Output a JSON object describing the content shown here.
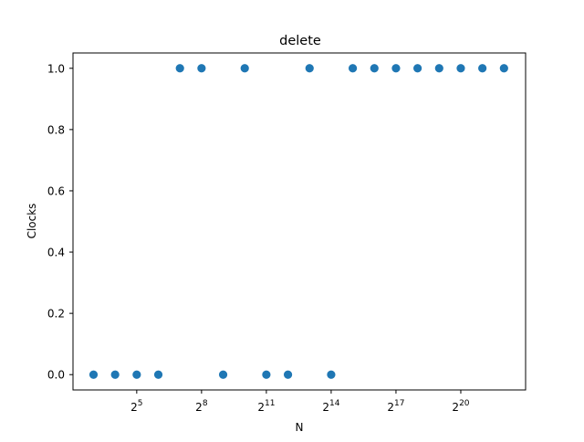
{
  "chart_data": {
    "type": "scatter",
    "title": "delete",
    "xlabel": "N",
    "ylabel": "Clocks",
    "x_scale": "log2",
    "x_exponents": [
      3,
      4,
      5,
      6,
      7,
      8,
      9,
      10,
      11,
      12,
      13,
      14,
      15,
      16,
      17,
      18,
      19,
      20,
      21,
      22
    ],
    "y": [
      0,
      0,
      0,
      0,
      1,
      1,
      0,
      1,
      0,
      0,
      1,
      0,
      1,
      1,
      1,
      1,
      1,
      1,
      1,
      1
    ],
    "xlim_exponents": [
      2.05,
      23.0
    ],
    "ylim": [
      -0.05,
      1.05
    ],
    "x_ticks": [
      {
        "exp": 5,
        "base": "2",
        "sup": "5"
      },
      {
        "exp": 8,
        "base": "2",
        "sup": "8"
      },
      {
        "exp": 11,
        "base": "2",
        "sup": "11"
      },
      {
        "exp": 14,
        "base": "2",
        "sup": "14"
      },
      {
        "exp": 17,
        "base": "2",
        "sup": "17"
      },
      {
        "exp": 20,
        "base": "2",
        "sup": "20"
      }
    ],
    "y_ticks": [
      {
        "value": 0.0,
        "label": "0.0"
      },
      {
        "value": 0.2,
        "label": "0.2"
      },
      {
        "value": 0.4,
        "label": "0.4"
      },
      {
        "value": 0.6,
        "label": "0.6"
      },
      {
        "value": 0.8,
        "label": "0.8"
      },
      {
        "value": 1.0,
        "label": "1.0"
      }
    ],
    "marker_color": "#1f77b4",
    "grid": false,
    "legend": false
  }
}
